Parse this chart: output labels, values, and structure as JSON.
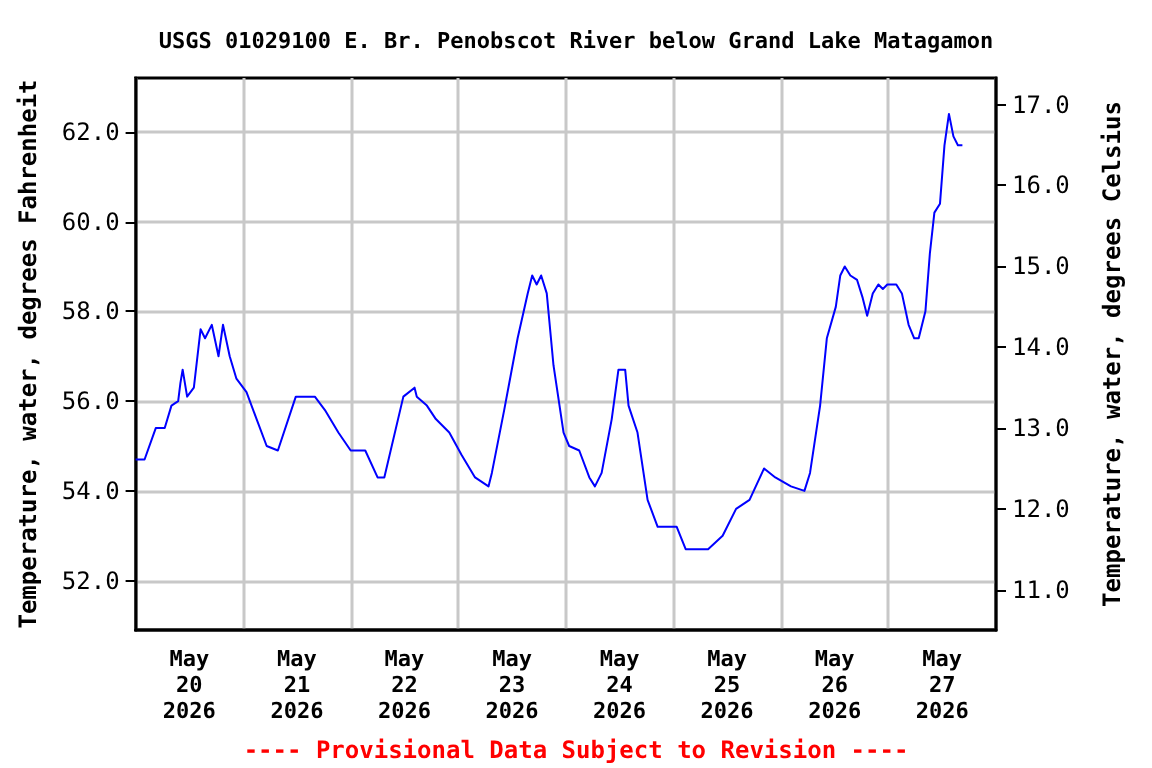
{
  "chart_data": {
    "type": "line",
    "title": "USGS 01029100 E. Br. Penobscot River below Grand Lake Matagamon",
    "ylabel": "Temperature, water, degrees Fahrenheit",
    "y2label": "Temperature, water, degrees Celsius",
    "annotations": [
      "---- Provisional Data Subject to Revision ----"
    ],
    "x": [
      "2026-05-20T00:00",
      "2026-05-20T02:00",
      "2026-05-20T04:30",
      "2026-05-20T06:30",
      "2026-05-20T08:00",
      "2026-05-20T09:30",
      "2026-05-20T10:00",
      "2026-05-20T10:30",
      "2026-05-20T11:30",
      "2026-05-20T13:00",
      "2026-05-20T14:30",
      "2026-05-20T15:30",
      "2026-05-20T17:00",
      "2026-05-20T18:30",
      "2026-05-20T19:30",
      "2026-05-20T21:00",
      "2026-05-20T22:30",
      "2026-05-21T00:45",
      "2026-05-21T03:00",
      "2026-05-21T05:15",
      "2026-05-21T07:45",
      "2026-05-21T11:45",
      "2026-05-21T16:00",
      "2026-05-21T18:15",
      "2026-05-21T21:15",
      "2026-05-22T00:00",
      "2026-05-22T03:15",
      "2026-05-22T06:00",
      "2026-05-22T07:30",
      "2026-05-22T11:45",
      "2026-05-22T14:15",
      "2026-05-22T14:45",
      "2026-05-22T17:00",
      "2026-05-22T19:00",
      "2026-05-22T22:00",
      "2026-05-23T00:45",
      "2026-05-23T03:45",
      "2026-05-23T06:45",
      "2026-05-23T07:30",
      "2026-05-23T10:15",
      "2026-05-23T13:15",
      "2026-05-23T15:30",
      "2026-05-23T16:30",
      "2026-05-23T17:30",
      "2026-05-23T18:30",
      "2026-05-23T19:45",
      "2026-05-23T21:15",
      "2026-05-23T23:30",
      "2026-05-24T00:45",
      "2026-05-24T03:00",
      "2026-05-24T05:15",
      "2026-05-24T06:30",
      "2026-05-24T08:00",
      "2026-05-24T10:15",
      "2026-05-24T11:45",
      "2026-05-24T13:15",
      "2026-05-24T14:00",
      "2026-05-24T16:00",
      "2026-05-24T18:15",
      "2026-05-24T20:30",
      "2026-05-25T00:45",
      "2026-05-25T02:45",
      "2026-05-25T07:45",
      "2026-05-25T11:00",
      "2026-05-25T14:00",
      "2026-05-25T17:00",
      "2026-05-25T20:15",
      "2026-05-25T22:45",
      "2026-05-26T02:15",
      "2026-05-26T05:15",
      "2026-05-26T06:30",
      "2026-05-26T08:45",
      "2026-05-26T10:15",
      "2026-05-26T12:15",
      "2026-05-26T13:15",
      "2026-05-26T14:15",
      "2026-05-26T15:30",
      "2026-05-26T17:00",
      "2026-05-26T18:15",
      "2026-05-26T19:15",
      "2026-05-26T20:30",
      "2026-05-26T21:45",
      "2026-05-26T22:45",
      "2026-05-26T23:45",
      "2026-05-27T01:45",
      "2026-05-27T03:00",
      "2026-05-27T04:30",
      "2026-05-27T05:45",
      "2026-05-27T06:45",
      "2026-05-27T08:15",
      "2026-05-27T09:15",
      "2026-05-27T10:15",
      "2026-05-27T11:30",
      "2026-05-27T12:30",
      "2026-05-27T13:30",
      "2026-05-27T14:30",
      "2026-05-27T15:30",
      "2026-05-27T16:30"
    ],
    "series": [
      {
        "color": "#0000ff",
        "values": [
          54.7,
          54.7,
          55.4,
          55.4,
          55.9,
          56.0,
          56.4,
          56.7,
          56.1,
          56.3,
          57.6,
          57.4,
          57.7,
          57.0,
          57.7,
          57.0,
          56.5,
          56.2,
          55.6,
          55.0,
          54.9,
          56.1,
          56.1,
          55.8,
          55.3,
          54.9,
          54.9,
          54.3,
          54.3,
          56.1,
          56.3,
          56.1,
          55.9,
          55.6,
          55.3,
          54.8,
          54.3,
          54.1,
          54.4,
          55.8,
          57.4,
          58.4,
          58.8,
          58.6,
          58.8,
          58.4,
          56.8,
          55.3,
          55.0,
          54.9,
          54.3,
          54.1,
          54.4,
          55.6,
          56.7,
          56.7,
          55.9,
          55.3,
          53.8,
          53.2,
          53.2,
          52.7,
          52.7,
          53.0,
          53.6,
          53.8,
          54.5,
          54.3,
          54.1,
          54.0,
          54.4,
          55.9,
          57.4,
          58.1,
          58.8,
          59.0,
          58.8,
          58.7,
          58.3,
          57.9,
          58.4,
          58.6,
          58.5,
          58.6,
          58.6,
          58.4,
          57.7,
          57.4,
          57.4,
          58.0,
          59.3,
          60.2,
          60.4,
          61.7,
          62.4,
          61.9,
          61.7,
          61.7
        ]
      }
    ],
    "xlim": [
      "2026-05-20T00:00",
      "2026-05-28T00:00"
    ],
    "xticks": [
      {
        "value": "2026-05-20T00:00",
        "label": null
      },
      {
        "value": "2026-05-20T12:00",
        "label": "May\n20\n2026"
      },
      {
        "value": "2026-05-21T00:00",
        "label": null
      },
      {
        "value": "2026-05-21T12:00",
        "label": "May\n21\n2026"
      },
      {
        "value": "2026-05-22T00:00",
        "label": null
      },
      {
        "value": "2026-05-22T12:00",
        "label": "May\n22\n2026"
      },
      {
        "value": "2026-05-23T00:00",
        "label": null
      },
      {
        "value": "2026-05-23T12:00",
        "label": "May\n23\n2026"
      },
      {
        "value": "2026-05-24T00:00",
        "label": null
      },
      {
        "value": "2026-05-24T12:00",
        "label": "May\n24\n2026"
      },
      {
        "value": "2026-05-25T00:00",
        "label": null
      },
      {
        "value": "2026-05-25T12:00",
        "label": "May\n25\n2026"
      },
      {
        "value": "2026-05-26T00:00",
        "label": null
      },
      {
        "value": "2026-05-26T12:00",
        "label": "May\n26\n2026"
      },
      {
        "value": "2026-05-27T00:00",
        "label": null
      },
      {
        "value": "2026-05-27T12:00",
        "label": "May\n27\n2026"
      },
      {
        "value": "2026-05-28T00:00",
        "label": null
      }
    ],
    "ylim": [
      50.9,
      63.2
    ],
    "yticks": [
      {
        "value": 52,
        "label": "52.0"
      },
      {
        "value": 54,
        "label": "54.0"
      },
      {
        "value": 56,
        "label": "56.0"
      },
      {
        "value": 58,
        "label": "58.0"
      },
      {
        "value": 60,
        "label": "60.0"
      },
      {
        "value": 62,
        "label": "62.0"
      }
    ],
    "y2lim": [
      10.5,
      17.33
    ],
    "y2ticks": [
      {
        "value": 11,
        "label": "11.0"
      },
      {
        "value": 12,
        "label": "12.0"
      },
      {
        "value": 13,
        "label": "13.0"
      },
      {
        "value": 14,
        "label": "14.0"
      },
      {
        "value": 15,
        "label": "15.0"
      },
      {
        "value": 16,
        "label": "16.0"
      },
      {
        "value": 17,
        "label": "17.0"
      }
    ],
    "grid": true,
    "marker": "none",
    "line_style": "solid"
  }
}
